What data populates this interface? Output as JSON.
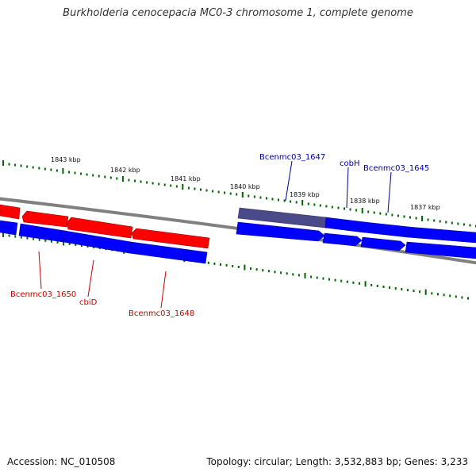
{
  "title": "Burkholderia cenocepacia MC0-3 chromosome 1, complete genome",
  "footer": {
    "accession": "Accession: NC_010508",
    "stats": "Topology: circular; Length: 3,532,883 bp; Genes: 3,233"
  },
  "colors": {
    "forward_gene": "#ff0000",
    "reverse_gene": "#0000ff",
    "highlight_gene": "#4a4a8a",
    "backbone": "#808080",
    "ticks": "#006600",
    "forward_label": "#cc0000",
    "reverse_label": "#000099"
  },
  "scale_labels": [
    "1843 kbp",
    "1842 kbp",
    "1841 kbp",
    "1840 kbp",
    "1839 kbp",
    "1838 kbp",
    "1837 kbp"
  ],
  "gene_labels": {
    "top": [
      "Bcenmc03_1647",
      "cobH",
      "Bcenmc03_1645"
    ],
    "bottom": [
      "Bcenmc03_1650",
      "cbiD",
      "Bcenmc03_1648"
    ]
  }
}
